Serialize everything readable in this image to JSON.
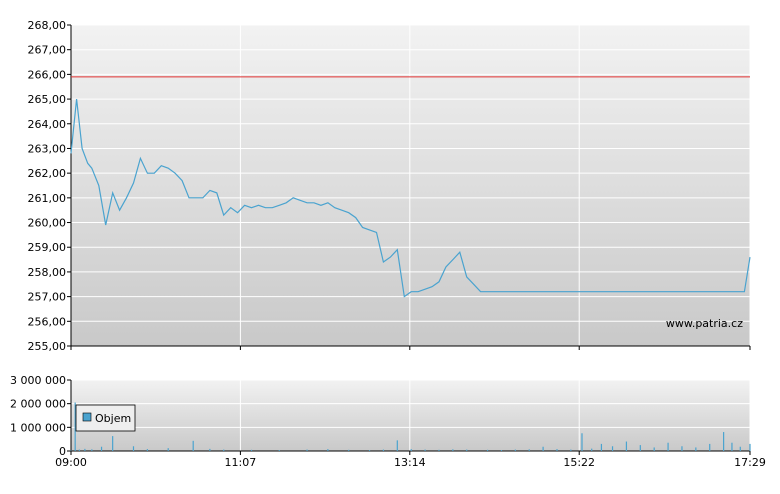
{
  "chart_data": [
    {
      "type": "line",
      "name": "price-panel",
      "ylim": [
        255,
        268
      ],
      "yticks": [
        "255,00",
        "256,00",
        "257,00",
        "258,00",
        "259,00",
        "260,00",
        "261,00",
        "262,00",
        "263,00",
        "264,00",
        "265,00",
        "266,00",
        "267,00",
        "268,00"
      ],
      "reference_line": {
        "value": 265.9,
        "color": "#e03030"
      },
      "line_color": "#4aa3cf",
      "grid": true,
      "series": [
        {
          "x": [
            0,
            4,
            8,
            12,
            15,
            20,
            25,
            30,
            35,
            40,
            45,
            50,
            55,
            60,
            65,
            70,
            75,
            80,
            85,
            90,
            95,
            100,
            105,
            110,
            115,
            120,
            125,
            130,
            135,
            140,
            145,
            150,
            155,
            160,
            165,
            170,
            175,
            180,
            185,
            190,
            195,
            200,
            205,
            210,
            215,
            220,
            225,
            230,
            235,
            240,
            245,
            250,
            255,
            260,
            265,
            270,
            275,
            280,
            285,
            290,
            295,
            300,
            305,
            310,
            315,
            320,
            325,
            330,
            335,
            340,
            345,
            350,
            355,
            360,
            365,
            370,
            375,
            380,
            385,
            390,
            395,
            400,
            405,
            410,
            415,
            420,
            425,
            430,
            435,
            440,
            445,
            450,
            455,
            460,
            465,
            470,
            475,
            480,
            485,
            489
          ],
          "y": [
            262.8,
            265.0,
            263.0,
            262.4,
            262.2,
            261.5,
            259.9,
            261.2,
            260.5,
            261.0,
            261.6,
            262.6,
            262.0,
            262.0,
            262.3,
            262.2,
            262.0,
            261.7,
            261.0,
            261.0,
            261.0,
            261.3,
            261.2,
            260.3,
            260.6,
            260.4,
            260.7,
            260.6,
            260.7,
            260.6,
            260.6,
            260.7,
            260.8,
            261.0,
            260.9,
            260.8,
            260.8,
            260.7,
            260.8,
            260.6,
            260.5,
            260.4,
            260.2,
            259.8,
            259.7,
            259.6,
            258.4,
            258.6,
            258.9,
            257.0,
            257.2,
            257.2,
            257.3,
            257.4,
            257.6,
            258.2,
            258.5,
            258.8,
            257.8,
            257.5,
            257.2,
            257.2,
            257.2,
            257.2,
            257.2,
            257.2,
            257.2,
            257.2,
            257.2,
            257.2,
            257.2,
            257.2,
            257.2,
            257.2,
            257.2,
            257.2,
            257.2,
            257.2,
            257.2,
            257.2,
            257.2,
            257.2,
            257.2,
            257.2,
            257.2,
            257.2,
            257.2,
            257.2,
            257.2,
            257.2,
            257.2,
            257.2,
            257.2,
            257.2,
            257.2,
            257.2,
            257.2,
            257.2,
            257.2,
            258.6
          ]
        }
      ]
    },
    {
      "type": "bar",
      "name": "volume-panel",
      "ylim": [
        0,
        3000000
      ],
      "yticks": [
        "0",
        "1 000 000",
        "2 000 000",
        "3 000 000"
      ],
      "bar_color": "#4aa3cf",
      "legend": {
        "label": "Objem",
        "placement": "left"
      },
      "series": [
        {
          "x": [
            0,
            3,
            6,
            10,
            15,
            22,
            30,
            45,
            55,
            70,
            88,
            100,
            110,
            130,
            150,
            170,
            185,
            200,
            215,
            225,
            235,
            245,
            255,
            265,
            275,
            285,
            300,
            310,
            320,
            330,
            340,
            350,
            360,
            368,
            375,
            382,
            390,
            400,
            410,
            420,
            430,
            440,
            450,
            460,
            470,
            476,
            482,
            489
          ],
          "values": [
            20000,
            2050000,
            60000,
            90000,
            70000,
            180000,
            630000,
            200000,
            80000,
            120000,
            430000,
            90000,
            60000,
            50000,
            40000,
            60000,
            80000,
            50000,
            40000,
            60000,
            450000,
            80000,
            60000,
            50000,
            70000,
            60000,
            50000,
            40000,
            60000,
            70000,
            180000,
            80000,
            60000,
            750000,
            100000,
            300000,
            200000,
            400000,
            250000,
            150000,
            350000,
            200000,
            150000,
            300000,
            800000,
            350000,
            180000,
            300000
          ]
        }
      ],
      "x_tick_labels": [
        "09:00",
        "11:07",
        "13:14",
        "15:22",
        "17:29"
      ]
    }
  ],
  "watermark": "www.patria.cz"
}
